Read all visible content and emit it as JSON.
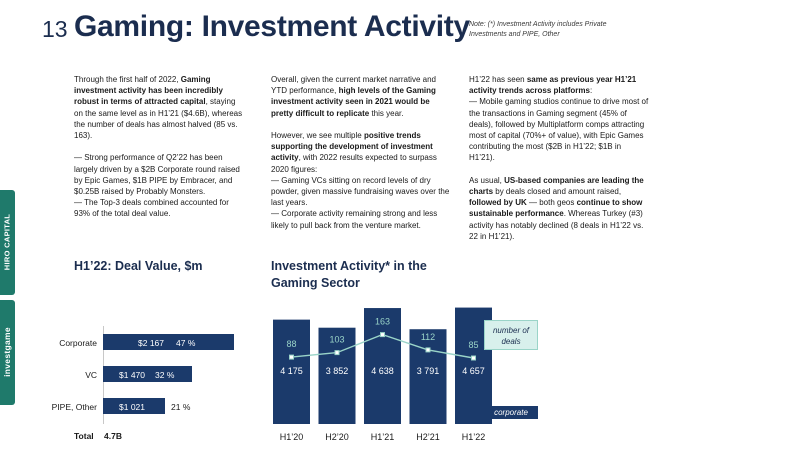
{
  "header": {
    "page_number": "13",
    "title": "Gaming: Investment Activity",
    "note": "Note: (*) Investment Activity includes Private Investments and PIPE, Other"
  },
  "side_tabs": {
    "top_label": "HIRO CAPITAL",
    "bottom_label": "investgame"
  },
  "columns": {
    "col1": {
      "p1_a": "Through the first half of 2022, ",
      "p1_b": "Gaming investment activity has been incredibly robust in terms of attracted capital",
      "p1_c": ", staying on the same level as in H1’21 ($4.6B), whereas the number of deals has almost halved (85 vs. 163).",
      "b1": "— Strong performance of Q2’22 has been largely driven by a $2B Corporate round raised by Epic Games, $1B PIPE by Embracer, and $0.25B raised by Probably Monsters.",
      "b2": "— The Top-3 deals combined accounted for 93% of the total deal value."
    },
    "col2": {
      "p1_a": "Overall, given the current market narrative and YTD performance, ",
      "p1_b": "high levels of the Gaming investment activity seen in 2021 would be pretty difficult to replicate",
      "p1_c": " this year.",
      "p2_a": "However, we see multiple ",
      "p2_b": "positive trends supporting the development of investment activity",
      "p2_c": ", with 2022 results expected to surpass 2020 figures:",
      "b1": "— Gaming VCs sitting on record levels of dry powder, given massive fundraising waves over the last years.",
      "b2": "— Corporate activity remaining strong and less likely to pull back from the venture market."
    },
    "col3": {
      "p1_a": "H1’22 has seen ",
      "p1_b": "same as previous year H1’21 activity trends across platforms",
      "p1_c": ":",
      "b1": "— Mobile gaming studios continue to drive most of the transactions in Gaming segment (45% of deals), followed by Multiplatform comps attracting most of capital (70%+ of value), with Epic Games contributing the most ($2B in H1’22; $1B in H1’21).",
      "p2_a": "As usual, ",
      "p2_b": "US-based companies are leading the charts",
      "p2_c": " by deals closed and amount raised, ",
      "p2_d": "followed by UK",
      "p2_e": " — both geos ",
      "p2_f": "continue to show sustainable performance",
      "p2_g": ". Whereas Turkey (#3) activity has notably declined (8 deals in H1’22 vs. 22 in H1’21)."
    }
  },
  "chart_data": [
    {
      "type": "bar",
      "orientation": "horizontal",
      "title": "H1’22: Deal Value, $m",
      "categories": [
        "Corporate",
        "VC",
        "PIPE, Other"
      ],
      "values": [
        2167,
        1470,
        1021
      ],
      "value_labels": [
        "$2 167",
        "$1 470",
        "$1 021"
      ],
      "percent_labels": [
        "47 %",
        "32 %",
        "21 %"
      ],
      "total_label": "Total",
      "total_value": "4.7B",
      "color": "#1b3a6b"
    },
    {
      "type": "bar",
      "title": "Investment Activity* in the Gaming Sector",
      "categories": [
        "H1’20",
        "H2’20",
        "H1’21",
        "H2’21",
        "H1’22"
      ],
      "series": [
        {
          "name": "corporate",
          "values": [
            4175,
            3852,
            4638,
            3791,
            4657
          ],
          "labels": [
            "4 175",
            "3 852",
            "4 638",
            "3 791",
            "4 657"
          ]
        },
        {
          "name": "number of deals",
          "values": [
            88,
            103,
            163,
            112,
            85
          ],
          "labels": [
            "88",
            "103",
            "163",
            "112",
            "85"
          ]
        }
      ],
      "legend": [
        "number of deals",
        "corporate"
      ],
      "ylim": [
        0,
        5200
      ],
      "deals_ylim": [
        0,
        260
      ],
      "bar_color": "#1b3a6b",
      "line_color": "#9ad4c8"
    }
  ]
}
